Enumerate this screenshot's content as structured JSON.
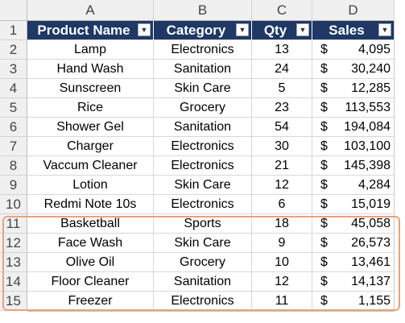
{
  "columns": [
    "A",
    "B",
    "C",
    "D"
  ],
  "header": {
    "product": "Product Name",
    "category": "Category",
    "qty": "Qty",
    "sales": "Sales"
  },
  "filter_icon": "dropdown-arrow-icon",
  "currency_symbol": "$",
  "rows": [
    {
      "num": "1"
    },
    {
      "num": "2",
      "product": "Lamp",
      "category": "Electronics",
      "qty": "13",
      "sales": "4,095"
    },
    {
      "num": "3",
      "product": "Hand Wash",
      "category": "Sanitation",
      "qty": "24",
      "sales": "30,240"
    },
    {
      "num": "4",
      "product": "Sunscreen",
      "category": "Skin Care",
      "qty": "5",
      "sales": "12,285"
    },
    {
      "num": "5",
      "product": "Rice",
      "category": "Grocery",
      "qty": "23",
      "sales": "113,553"
    },
    {
      "num": "6",
      "product": "Shower Gel",
      "category": "Sanitation",
      "qty": "54",
      "sales": "194,084"
    },
    {
      "num": "7",
      "product": "Charger",
      "category": "Electronics",
      "qty": "30",
      "sales": "103,100"
    },
    {
      "num": "8",
      "product": "Vaccum Cleaner",
      "category": "Electronics",
      "qty": "21",
      "sales": "145,398"
    },
    {
      "num": "9",
      "product": "Lotion",
      "category": "Skin Care",
      "qty": "12",
      "sales": "4,284"
    },
    {
      "num": "10",
      "product": "Redmi Note 10s",
      "category": "Electronics",
      "qty": "6",
      "sales": "15,019"
    },
    {
      "num": "11",
      "product": "Basketball",
      "category": "Sports",
      "qty": "18",
      "sales": "45,058"
    },
    {
      "num": "12",
      "product": "Face Wash",
      "category": "Skin Care",
      "qty": "9",
      "sales": "26,573"
    },
    {
      "num": "13",
      "product": "Olive Oil",
      "category": "Grocery",
      "qty": "10",
      "sales": "13,461"
    },
    {
      "num": "14",
      "product": "Floor Cleaner",
      "category": "Sanitation",
      "qty": "12",
      "sales": "14,137"
    },
    {
      "num": "15",
      "product": "Freezer",
      "category": "Electronics",
      "qty": "11",
      "sales": "1,155"
    }
  ],
  "colors": {
    "header_bg": "#1f3864",
    "highlight_border": "#e8a27a"
  }
}
